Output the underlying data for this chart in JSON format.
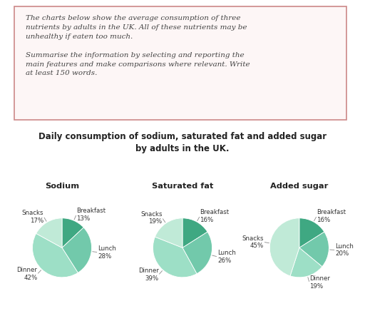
{
  "title": "Daily consumption of sodium, saturated fat and added sugar\nby adults in the UK.",
  "prompt_text": "The charts below show the average consumption of three\nnutrients by adults in the UK. All of these nutrients may be\nunhealthy if eaten too much.\n\nSummarise the information by selecting and reporting the\nmain features and make comparisons where relevant. Write\nat least 150 words.",
  "charts": [
    {
      "name": "Sodium",
      "labels": [
        "Breakfast",
        "Lunch",
        "Dinner",
        "Snacks"
      ],
      "values": [
        13,
        28,
        42,
        17
      ],
      "colors": [
        "#3fa882",
        "#72c9ab",
        "#9ddfc6",
        "#c0ead7"
      ]
    },
    {
      "name": "Saturated fat",
      "labels": [
        "Breakfast",
        "Lunch",
        "Dinner",
        "Snacks"
      ],
      "values": [
        16,
        26,
        39,
        19
      ],
      "colors": [
        "#3fa882",
        "#72c9ab",
        "#9ddfc6",
        "#c0ead7"
      ]
    },
    {
      "name": "Added sugar",
      "labels": [
        "Breakfast",
        "Lunch",
        "Dinner",
        "Snacks"
      ],
      "values": [
        16,
        20,
        19,
        45
      ],
      "colors": [
        "#3fa882",
        "#72c9ab",
        "#9ddfc6",
        "#c0ead7"
      ]
    }
  ],
  "bg_color": "#ffffff",
  "box_facecolor": "#fdf6f6",
  "box_edgecolor": "#cc8888",
  "text_color": "#444444",
  "title_fontsize": 8.5,
  "label_fontsize": 6.2,
  "prompt_fontsize": 7.5
}
